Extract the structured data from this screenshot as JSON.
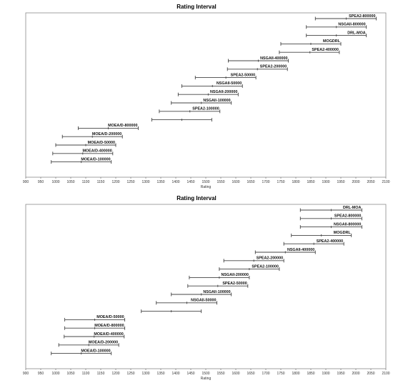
{
  "chart_data": [
    {
      "type": "interval",
      "title": "Rating Interval",
      "xlabel": "Rating",
      "xlim": [
        900,
        2100
      ],
      "xticks": [
        900,
        950,
        1000,
        1050,
        1100,
        1150,
        1200,
        1250,
        1300,
        1350,
        1400,
        1450,
        1500,
        1550,
        1600,
        1650,
        1700,
        1750,
        1800,
        1850,
        1900,
        1950,
        2000,
        2050,
        2100
      ],
      "intervals": [
        {
          "label": "SPEA2-800000",
          "low": 1865,
          "mid": 1968,
          "high": 2068
        },
        {
          "label": "NSGAII-800000",
          "low": 1835,
          "mid": 1935,
          "high": 2035
        },
        {
          "label": "DRL-MOA",
          "low": 1835,
          "mid": 1935,
          "high": 2035
        },
        {
          "label": "MOGDRL",
          "low": 1750,
          "mid": 1850,
          "high": 1950
        },
        {
          "label": "SPEA2-400000",
          "low": 1745,
          "mid": 1847,
          "high": 1945
        },
        {
          "label": "NSGAII-400000",
          "low": 1575,
          "mid": 1675,
          "high": 1775
        },
        {
          "label": "SPEA2-200000",
          "low": 1572,
          "mid": 1672,
          "high": 1772
        },
        {
          "label": "SPEA2-50000",
          "low": 1465,
          "mid": 1567,
          "high": 1667
        },
        {
          "label": "NSGAII-50000",
          "low": 1420,
          "mid": 1522,
          "high": 1622
        },
        {
          "label": "NSGAII-200000",
          "low": 1408,
          "mid": 1508,
          "high": 1608
        },
        {
          "label": "NSGAII-100000",
          "low": 1385,
          "mid": 1485,
          "high": 1585
        },
        {
          "label": "SPEA2-100000",
          "low": 1345,
          "mid": 1447,
          "high": 1547
        },
        {
          "label": "",
          "low": 1320,
          "mid": 1420,
          "high": 1520
        },
        {
          "label": "MOEA/D-800000",
          "low": 1075,
          "mid": 1175,
          "high": 1275
        },
        {
          "label": "MOEA/D-200000",
          "low": 1022,
          "mid": 1122,
          "high": 1222
        },
        {
          "label": "MOEA/D-50000",
          "low": 1000,
          "mid": 1100,
          "high": 1200
        },
        {
          "label": "MOEA/D-400000",
          "low": 990,
          "mid": 1090,
          "high": 1190
        },
        {
          "label": "MOEA/D-100000",
          "low": 985,
          "mid": 1085,
          "high": 1185
        }
      ]
    },
    {
      "type": "interval",
      "title": "Rating Interval",
      "xlabel": "Rating",
      "xlim": [
        900,
        2100
      ],
      "xticks": [
        900,
        950,
        1000,
        1050,
        1100,
        1150,
        1200,
        1250,
        1300,
        1350,
        1400,
        1450,
        1500,
        1550,
        1600,
        1650,
        1700,
        1750,
        1800,
        1850,
        1900,
        1950,
        2000,
        2050,
        2100
      ],
      "intervals": [
        {
          "label": "DRL-MOA",
          "low": 1815,
          "mid": 1918,
          "high": 2020
        },
        {
          "label": "SPEA2-800000",
          "low": 1815,
          "mid": 1918,
          "high": 2020
        },
        {
          "label": "NSGAII-800000",
          "low": 1815,
          "mid": 1918,
          "high": 2020
        },
        {
          "label": "MOGDRL",
          "low": 1785,
          "mid": 1885,
          "high": 1985
        },
        {
          "label": "SPEA2-400000",
          "low": 1760,
          "mid": 1860,
          "high": 1960
        },
        {
          "label": "NSGAII-400000",
          "low": 1665,
          "mid": 1765,
          "high": 1865
        },
        {
          "label": "SPEA2-200000",
          "low": 1560,
          "mid": 1660,
          "high": 1760
        },
        {
          "label": "SPEA2-100000",
          "low": 1545,
          "mid": 1645,
          "high": 1745
        },
        {
          "label": "NSGAII-200000",
          "low": 1445,
          "mid": 1545,
          "high": 1645
        },
        {
          "label": "SPEA2-50000",
          "low": 1440,
          "mid": 1540,
          "high": 1640
        },
        {
          "label": "NSGAII-100000",
          "low": 1385,
          "mid": 1485,
          "high": 1585
        },
        {
          "label": "NSGAII-50000",
          "low": 1335,
          "mid": 1437,
          "high": 1537
        },
        {
          "label": "",
          "low": 1285,
          "mid": 1385,
          "high": 1485
        },
        {
          "label": "MOEA/D-50000",
          "low": 1030,
          "mid": 1130,
          "high": 1230
        },
        {
          "label": "MOEA/D-800000",
          "low": 1030,
          "mid": 1130,
          "high": 1230
        },
        {
          "label": "MOEA/D-400000",
          "low": 1028,
          "mid": 1128,
          "high": 1228
        },
        {
          "label": "MOEA/D-200000",
          "low": 1010,
          "mid": 1110,
          "high": 1210
        },
        {
          "label": "MOEA/D-100000",
          "low": 985,
          "mid": 1085,
          "high": 1185
        }
      ]
    }
  ]
}
